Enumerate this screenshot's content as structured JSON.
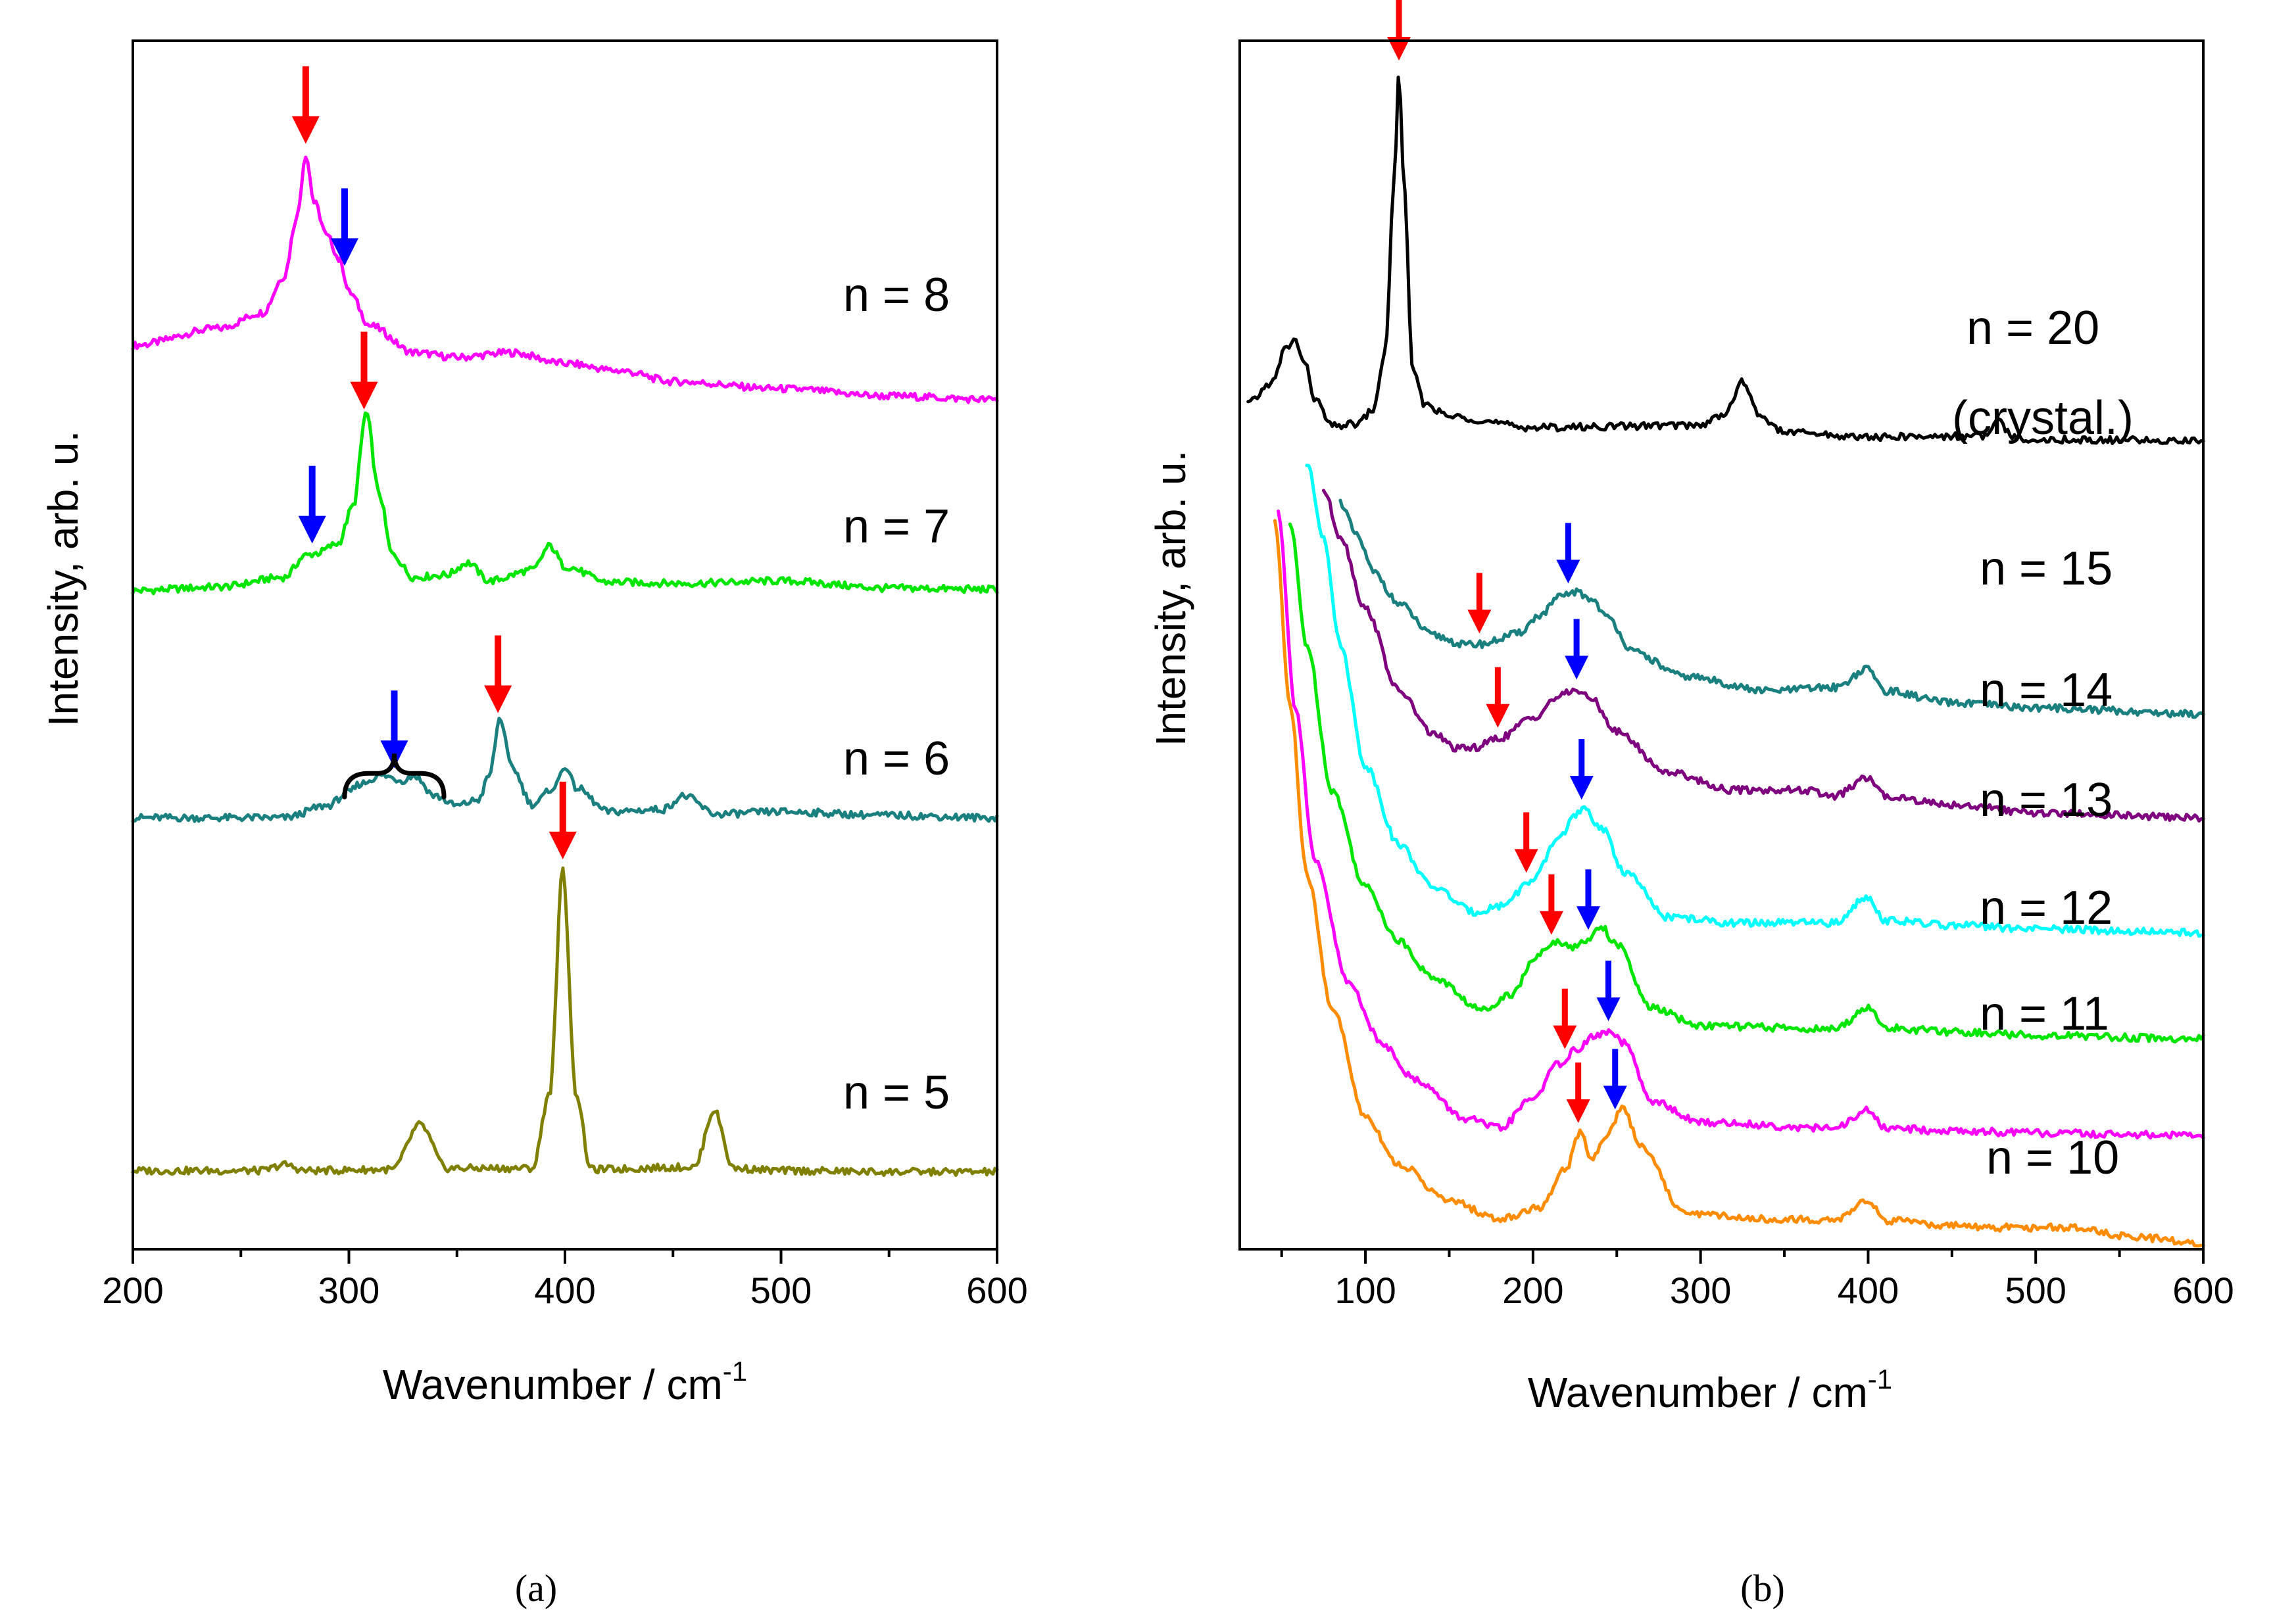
{
  "figure": {
    "caption_a": "(a)",
    "caption_b": "(b)"
  },
  "chart_data": [
    {
      "type": "line",
      "panel": "a",
      "xlabel": "Wavenumber / cm",
      "xlabel_sup": "-1",
      "ylabel": "Intensity, arb. u.",
      "xlim": [
        200,
        600
      ],
      "ylim": [
        0,
        1
      ],
      "xticks": [
        "200",
        "300",
        "400",
        "500",
        "600"
      ],
      "tick_values": [
        200,
        300,
        400,
        500,
        600
      ],
      "series": [
        {
          "name": "n = 8",
          "label": "n = 8",
          "color": "#FF00FF",
          "x": [
            200,
            240,
            260,
            270,
            276,
            280,
            284,
            290,
            296,
            300,
            310,
            330,
            350,
            375,
            400,
            425,
            450,
            500,
            550,
            600
          ],
          "y": [
            0.748,
            0.762,
            0.775,
            0.805,
            0.855,
            0.906,
            0.866,
            0.838,
            0.818,
            0.792,
            0.764,
            0.742,
            0.738,
            0.742,
            0.733,
            0.727,
            0.718,
            0.712,
            0.706,
            0.703
          ]
        },
        {
          "name": "n = 7",
          "label": "n = 7",
          "color": "#00E600",
          "x": [
            200,
            240,
            270,
            280,
            285,
            295,
            302,
            308,
            314,
            320,
            330,
            345,
            355,
            365,
            385,
            393,
            400,
            420,
            455,
            500,
            550,
            600
          ],
          "y": [
            0.545,
            0.548,
            0.556,
            0.574,
            0.576,
            0.584,
            0.615,
            0.692,
            0.625,
            0.575,
            0.556,
            0.558,
            0.568,
            0.553,
            0.562,
            0.582,
            0.565,
            0.552,
            0.551,
            0.553,
            0.547,
            0.546
          ]
        },
        {
          "name": "n = 6",
          "label": "n = 6",
          "color": "#1A7F7F",
          "x": [
            200,
            270,
            290,
            300,
            305,
            315,
            325,
            330,
            340,
            350,
            360,
            365,
            370,
            375,
            385,
            395,
            400,
            405,
            420,
            445,
            455,
            470,
            500,
            550,
            600
          ],
          "y": [
            0.357,
            0.357,
            0.367,
            0.378,
            0.385,
            0.392,
            0.388,
            0.392,
            0.375,
            0.367,
            0.372,
            0.392,
            0.44,
            0.4,
            0.368,
            0.382,
            0.4,
            0.382,
            0.362,
            0.364,
            0.375,
            0.36,
            0.362,
            0.359,
            0.357
          ]
        },
        {
          "name": "n = 5",
          "label": "n = 5",
          "color": "#808000",
          "x": [
            200,
            260,
            270,
            280,
            320,
            333,
            345,
            385,
            393,
            399,
            405,
            412,
            460,
            469,
            478,
            500,
            550,
            600
          ],
          "y": [
            0.065,
            0.065,
            0.07,
            0.065,
            0.066,
            0.103,
            0.067,
            0.067,
            0.13,
            0.314,
            0.13,
            0.066,
            0.068,
            0.115,
            0.067,
            0.065,
            0.064,
            0.064
          ]
        }
      ],
      "annotations": [
        {
          "kind": "red-arrow",
          "series": "n = 8",
          "x": 280
        },
        {
          "kind": "blue-arrow",
          "series": "n = 8",
          "x": 298
        },
        {
          "kind": "red-arrow",
          "series": "n = 7",
          "x": 307
        },
        {
          "kind": "blue-arrow",
          "series": "n = 7",
          "x": 283
        },
        {
          "kind": "red-arrow",
          "series": "n = 6",
          "x": 369
        },
        {
          "kind": "blue-arrow",
          "series": "n = 6",
          "x": 321
        },
        {
          "kind": "brace",
          "series": "n = 6",
          "x_from": 298,
          "x_to": 344
        },
        {
          "kind": "red-arrow",
          "series": "n = 5",
          "x": 399
        }
      ]
    },
    {
      "type": "line",
      "panel": "b",
      "xlabel": "Wavenumber / cm",
      "xlabel_sup": "-1",
      "ylabel": "Intensity, arb. u.",
      "xlim": [
        25,
        600
      ],
      "ylim": [
        0,
        1
      ],
      "xticks": [
        "100",
        "200",
        "300",
        "400",
        "500",
        "600"
      ],
      "tick_values": [
        100,
        200,
        300,
        400,
        500,
        600
      ],
      "series": [
        {
          "name": "n = 20",
          "label": "n = 20",
          "label2": "(crystal.)",
          "color": "#000000",
          "x": [
            30,
            45,
            52,
            58,
            64,
            70,
            80,
            95,
            105,
            112,
            117,
            120,
            123,
            128,
            135,
            150,
            200,
            300,
            315,
            325,
            335,
            350,
            400,
            470,
            478,
            486,
            500,
            600
          ],
          "y": [
            0.7,
            0.718,
            0.745,
            0.752,
            0.732,
            0.703,
            0.681,
            0.683,
            0.695,
            0.745,
            0.88,
            0.975,
            0.88,
            0.73,
            0.7,
            0.689,
            0.68,
            0.682,
            0.692,
            0.718,
            0.69,
            0.676,
            0.672,
            0.673,
            0.685,
            0.672,
            0.67,
            0.669
          ]
        },
        {
          "name": "n = 15",
          "label": "n = 15",
          "color": "#1A7F7F",
          "x": [
            85,
            95,
            105,
            120,
            140,
            160,
            170,
            190,
            205,
            215,
            225,
            235,
            245,
            260,
            290,
            340,
            380,
            400,
            410,
            450,
            500,
            600
          ],
          "y": [
            0.618,
            0.59,
            0.56,
            0.534,
            0.508,
            0.5,
            0.501,
            0.509,
            0.525,
            0.539,
            0.544,
            0.538,
            0.522,
            0.494,
            0.474,
            0.462,
            0.465,
            0.48,
            0.462,
            0.452,
            0.448,
            0.443
          ]
        },
        {
          "name": "n = 14",
          "label": "n = 14",
          "color": "#7F007F",
          "x": [
            75,
            85,
            100,
            120,
            140,
            155,
            165,
            180,
            200,
            215,
            225,
            235,
            250,
            280,
            320,
            360,
            380,
            400,
            410,
            450,
            500,
            600
          ],
          "y": [
            0.628,
            0.59,
            0.53,
            0.462,
            0.427,
            0.414,
            0.415,
            0.423,
            0.44,
            0.457,
            0.463,
            0.455,
            0.428,
            0.395,
            0.38,
            0.38,
            0.375,
            0.39,
            0.375,
            0.368,
            0.361,
            0.357
          ]
        },
        {
          "name": "n = 13",
          "label": "n = 13",
          "color": "#00FFFF",
          "x": [
            65,
            75,
            85,
            100,
            120,
            140,
            165,
            180,
            200,
            215,
            225,
            230,
            240,
            255,
            280,
            320,
            380,
            400,
            410,
            450,
            500,
            600
          ],
          "y": [
            0.65,
            0.59,
            0.5,
            0.4,
            0.335,
            0.3,
            0.279,
            0.284,
            0.305,
            0.34,
            0.358,
            0.364,
            0.35,
            0.312,
            0.275,
            0.27,
            0.27,
            0.292,
            0.272,
            0.268,
            0.265,
            0.262
          ]
        },
        {
          "name": "n = 12",
          "label": "n = 12",
          "color": "#00E600",
          "x": [
            55,
            65,
            80,
            100,
            120,
            140,
            170,
            185,
            205,
            215,
            225,
            232,
            240,
            250,
            270,
            300,
            380,
            400,
            410,
            450,
            500,
            600
          ],
          "y": [
            0.6,
            0.5,
            0.38,
            0.3,
            0.255,
            0.225,
            0.198,
            0.21,
            0.245,
            0.255,
            0.25,
            0.255,
            0.268,
            0.252,
            0.2,
            0.185,
            0.182,
            0.2,
            0.183,
            0.18,
            0.177,
            0.174
          ]
        },
        {
          "name": "n = 11",
          "label": "n = 11",
          "color": "#FF00FF",
          "x": [
            48,
            58,
            70,
            90,
            110,
            130,
            160,
            180,
            200,
            215,
            225,
            235,
            245,
            255,
            270,
            300,
            380,
            400,
            410,
            450,
            500,
            600
          ],
          "y": [
            0.61,
            0.45,
            0.32,
            0.22,
            0.17,
            0.14,
            0.108,
            0.1,
            0.125,
            0.153,
            0.164,
            0.175,
            0.18,
            0.17,
            0.123,
            0.105,
            0.1,
            0.115,
            0.1,
            0.098,
            0.096,
            0.094
          ]
        },
        {
          "name": "n = 10",
          "label": "n = 10",
          "color": "#FF8C00",
          "x": [
            46,
            55,
            65,
            80,
            100,
            120,
            150,
            180,
            205,
            220,
            228,
            235,
            245,
            253,
            265,
            290,
            340,
            380,
            400,
            410,
            440,
            470,
            520,
            560,
            600
          ],
          "y": [
            0.6,
            0.45,
            0.31,
            0.2,
            0.11,
            0.07,
            0.04,
            0.025,
            0.035,
            0.068,
            0.097,
            0.076,
            0.096,
            0.118,
            0.085,
            0.03,
            0.025,
            0.024,
            0.04,
            0.024,
            0.02,
            0.018,
            0.018,
            0.01,
            0.005
          ]
        }
      ],
      "annotations": [
        {
          "kind": "red-arrow",
          "series": "n = 20",
          "x": 120
        },
        {
          "kind": "red-arrow",
          "series": "n = 15",
          "x": 168
        },
        {
          "kind": "blue-arrow",
          "series": "n = 15",
          "x": 221
        },
        {
          "kind": "red-arrow",
          "series": "n = 14",
          "x": 179
        },
        {
          "kind": "blue-arrow",
          "series": "n = 14",
          "x": 226
        },
        {
          "kind": "red-arrow",
          "series": "n = 13",
          "x": 196
        },
        {
          "kind": "blue-arrow",
          "series": "n = 13",
          "x": 229
        },
        {
          "kind": "red-arrow",
          "series": "n = 12",
          "x": 211
        },
        {
          "kind": "blue-arrow",
          "series": "n = 12",
          "x": 233
        },
        {
          "kind": "red-arrow",
          "series": "n = 11",
          "x": 219
        },
        {
          "kind": "blue-arrow",
          "series": "n = 11",
          "x": 245
        },
        {
          "kind": "red-arrow",
          "series": "n = 10",
          "x": 227
        },
        {
          "kind": "blue-arrow",
          "series": "n = 10",
          "x": 249
        }
      ]
    }
  ]
}
